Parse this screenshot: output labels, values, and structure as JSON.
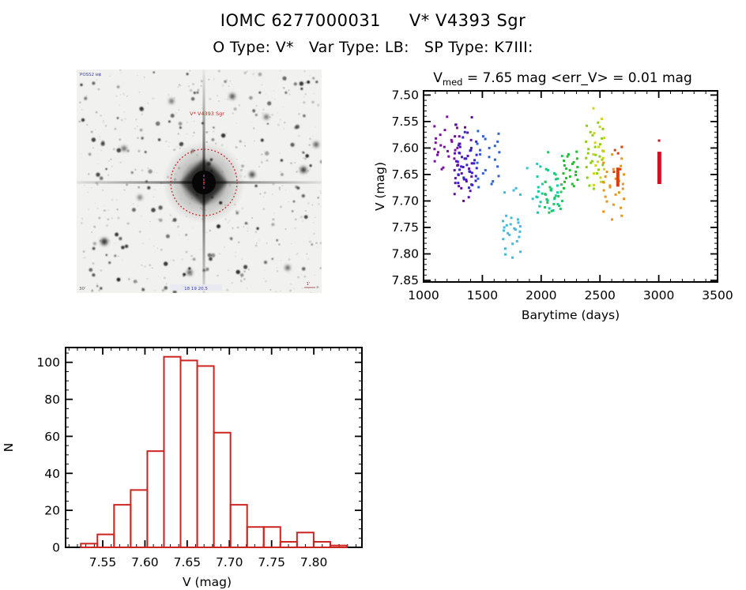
{
  "header": {
    "title": "IOMC 6277000031     V* V4393 Sgr",
    "subtitle": "O Type: V*   Var Type: LB:   SP Type: K7III:"
  },
  "finder": {
    "top_left_label": "POSS2 int",
    "star_label": "V* V4393 Sgr",
    "bottom_left_label": "30'",
    "bottom_center_label": "18 19 20.5",
    "scale_label": "1'",
    "blue_label_color": "#3a3ab8",
    "marker_color": "#cc2222"
  },
  "chart_data": [
    {
      "id": "lightcurve",
      "type": "scatter",
      "title_v": "V",
      "title_sub": "med",
      "title_rest": " = 7.65 mag <err_V> = 0.01 mag",
      "xlabel": "Barytime (days)",
      "ylabel": "V (mag)",
      "xlim": [
        1000,
        3500
      ],
      "ylim": [
        7.492,
        7.853
      ],
      "y_inverted": true,
      "xticks": [
        1000,
        1500,
        2000,
        2500,
        3000,
        3500
      ],
      "xtick_labels": [
        "1000",
        "1500",
        "2000",
        "2500",
        "3000",
        "3500"
      ],
      "yticks": [
        7.5,
        7.55,
        7.6,
        7.65,
        7.7,
        7.75,
        7.8,
        7.85
      ],
      "ytick_labels": [
        "7.50",
        "7.55",
        "7.60",
        "7.65",
        "7.70",
        "7.75",
        "7.80",
        "7.85"
      ],
      "x_minor": 100,
      "y_minor": 0.01,
      "clusters": [
        {
          "x": 1200,
          "spread": 16,
          "color": "#7B0E9C",
          "v": [
            7.541,
            7.556,
            7.559,
            7.562,
            7.566,
            7.575,
            7.578,
            7.582,
            7.585,
            7.588,
            7.59,
            7.592,
            7.595,
            7.598,
            7.6,
            7.602,
            7.604,
            7.606,
            7.608,
            7.61,
            7.613,
            7.616,
            7.62,
            7.625,
            7.632,
            7.637,
            7.64
          ]
        },
        {
          "x": 1337,
          "spread": 11,
          "color": "#5A0FAE",
          "v": [
            7.542,
            7.556,
            7.561,
            7.571,
            7.578,
            7.585,
            7.592,
            7.598,
            7.604,
            7.61,
            7.615,
            7.62,
            7.625,
            7.629,
            7.633,
            7.636,
            7.639,
            7.642,
            7.645,
            7.648,
            7.651,
            7.654,
            7.657,
            7.66,
            7.663,
            7.666,
            7.669,
            7.672,
            7.676,
            7.681,
            7.687,
            7.693,
            7.7
          ]
        },
        {
          "x": 1372,
          "spread": 12,
          "color": "#3523CC",
          "v": [
            7.57,
            7.58,
            7.588,
            7.595,
            7.6,
            7.605,
            7.609,
            7.613,
            7.617,
            7.62,
            7.623,
            7.626,
            7.629,
            7.632,
            7.635,
            7.638,
            7.641,
            7.644,
            7.647,
            7.65,
            7.653,
            7.656,
            7.659,
            7.662,
            7.666,
            7.67,
            7.675
          ]
        },
        {
          "x": 1550,
          "spread": 14,
          "color": "#2A62D8",
          "v": [
            7.568,
            7.573,
            7.578,
            7.583,
            7.588,
            7.592,
            7.596,
            7.6,
            7.604,
            7.608,
            7.612,
            7.617,
            7.622,
            7.628,
            7.635,
            7.642,
            7.648,
            7.653,
            7.658,
            7.663,
            7.668,
            7.674
          ]
        },
        {
          "x": 1750,
          "spread": 11,
          "color": "#41B9DE",
          "v": [
            7.676,
            7.68,
            7.684,
            7.688,
            7.728,
            7.732,
            7.735,
            7.738,
            7.741,
            7.744,
            7.746,
            7.748,
            7.75,
            7.752,
            7.754,
            7.756,
            7.758,
            7.761,
            7.764,
            7.768,
            7.772,
            7.776,
            7.781,
            7.79,
            7.796,
            7.801,
            7.807
          ]
        },
        {
          "x": 1928,
          "spread": 7,
          "color": "#2FC7C7",
          "v": [
            7.63,
            7.638,
            7.692,
            7.696
          ]
        },
        {
          "x": 2055,
          "spread": 13,
          "color": "#12CCA1",
          "v": [
            7.635,
            7.642,
            7.648,
            7.654,
            7.659,
            7.664,
            7.668,
            7.671,
            7.674,
            7.677,
            7.68,
            7.682,
            7.684,
            7.686,
            7.688,
            7.69,
            7.693,
            7.696,
            7.699,
            7.702,
            7.706,
            7.71,
            7.714,
            7.718,
            7.722
          ]
        },
        {
          "x": 2105,
          "spread": 11,
          "color": "#27C45F",
          "v": [
            7.608,
            7.615,
            7.64,
            7.65,
            7.658,
            7.664,
            7.669,
            7.674,
            7.679,
            7.683,
            7.687,
            7.691,
            7.694,
            7.697,
            7.7,
            7.703,
            7.706,
            7.709,
            7.712,
            7.715,
            7.719,
            7.722
          ]
        },
        {
          "x": 2250,
          "spread": 9,
          "color": "#1DBE2E",
          "v": [
            7.607,
            7.612,
            7.616,
            7.62,
            7.624,
            7.627,
            7.63,
            7.633,
            7.636,
            7.639,
            7.642,
            7.645,
            7.648,
            7.651,
            7.654,
            7.657,
            7.66,
            7.664,
            7.668,
            7.672,
            7.676
          ]
        },
        {
          "x": 2455,
          "spread": 11,
          "color": "#8CCF15",
          "v": [
            7.552,
            7.558,
            7.564,
            7.57,
            7.576,
            7.582,
            7.588,
            7.593,
            7.598,
            7.602,
            7.606,
            7.61,
            7.613,
            7.616,
            7.619,
            7.622,
            7.625,
            7.628,
            7.632,
            7.636,
            7.641,
            7.648,
            7.656,
            7.664,
            7.671,
            7.677
          ]
        },
        {
          "x": 2490,
          "spread": 7,
          "color": "#D2D316",
          "v": [
            7.525,
            7.545,
            7.56,
            7.572,
            7.581,
            7.59,
            7.598,
            7.605,
            7.612,
            7.619,
            7.626,
            7.633,
            7.64,
            7.648,
            7.656,
            7.664,
            7.67
          ]
        },
        {
          "x": 2617,
          "spread": 13,
          "color": "#E6941A",
          "v": [
            7.612,
            7.62,
            7.628,
            7.634,
            7.64,
            7.645,
            7.65,
            7.654,
            7.658,
            7.662,
            7.665,
            7.668,
            7.671,
            7.674,
            7.677,
            7.68,
            7.684,
            7.688,
            7.692,
            7.696,
            7.701,
            7.707,
            7.713,
            7.72,
            7.728,
            7.735
          ]
        },
        {
          "x": 2652,
          "spread": 5,
          "color": "#DE3B0F",
          "v": [
            7.598,
            7.604,
            7.61,
            7.64,
            7.645
          ]
        },
        {
          "x": 3005,
          "spread": 3,
          "color": "#CE1126",
          "v": [
            7.586
          ]
        }
      ],
      "segments": [
        {
          "x": 2652,
          "v0": 7.637,
          "v1": 7.673,
          "color": "#DE3B0F",
          "w": 4
        },
        {
          "x": 3005,
          "v0": 7.607,
          "v1": 7.668,
          "color": "#CE1126",
          "w": 5
        }
      ]
    },
    {
      "id": "histogram",
      "type": "bar",
      "title": "",
      "xlabel": "V (mag)",
      "ylabel": "N",
      "xlim": [
        7.506,
        7.857
      ],
      "ylim": [
        0,
        108
      ],
      "xticks": [
        7.55,
        7.6,
        7.65,
        7.7,
        7.75,
        7.8
      ],
      "xtick_labels": [
        "7.55",
        "7.60",
        "7.65",
        "7.70",
        "7.75",
        "7.80"
      ],
      "yticks": [
        0,
        20,
        40,
        60,
        80,
        100
      ],
      "ytick_labels": [
        "0",
        "20",
        "40",
        "60",
        "80",
        "100"
      ],
      "x_minor": 0.01,
      "y_minor": 5,
      "bin_start": 7.524,
      "bin_width": 0.0197,
      "counts": [
        2,
        7,
        23,
        31,
        52,
        103,
        101,
        98,
        62,
        23,
        11,
        11,
        3,
        8,
        3,
        1
      ],
      "color": "#CC2420"
    }
  ]
}
